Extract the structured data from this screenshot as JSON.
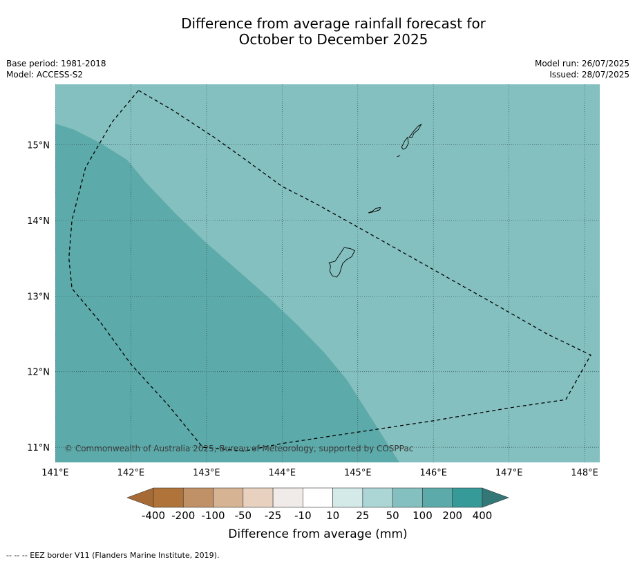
{
  "title": {
    "line1": "Difference from average rainfall forecast for",
    "line2": "October to December 2025"
  },
  "meta": {
    "base_period": "Base period: 1981-2018",
    "model": "Model: ACCESS-S2",
    "model_run": "Model run: 26/07/2025",
    "issued": "Issued: 28/07/2025"
  },
  "map": {
    "lon_range": [
      141.0,
      148.2
    ],
    "lat_range": [
      10.8,
      15.8
    ],
    "lon_ticks": [
      {
        "value": 141,
        "label": "141°E"
      },
      {
        "value": 142,
        "label": "142°E"
      },
      {
        "value": 143,
        "label": "143°E"
      },
      {
        "value": 144,
        "label": "144°E"
      },
      {
        "value": 145,
        "label": "145°E"
      },
      {
        "value": 146,
        "label": "146°E"
      },
      {
        "value": 147,
        "label": "147°E"
      },
      {
        "value": 148,
        "label": "148°E"
      }
    ],
    "lat_ticks": [
      {
        "value": 15,
        "label": "15°N"
      },
      {
        "value": 14,
        "label": "14°N"
      },
      {
        "value": 13,
        "label": "13°N"
      },
      {
        "value": 12,
        "label": "12°N"
      },
      {
        "value": 11,
        "label": "11°N"
      }
    ],
    "grid": true,
    "background_color": "#84c0bf",
    "region_color": "#5daaaa",
    "wetter_region": [
      [
        141.0,
        15.28
      ],
      [
        141.25,
        15.2
      ],
      [
        141.6,
        15.02
      ],
      [
        141.95,
        14.8
      ],
      [
        142.2,
        14.5
      ],
      [
        142.6,
        14.08
      ],
      [
        143.0,
        13.7
      ],
      [
        143.4,
        13.35
      ],
      [
        143.8,
        13.0
      ],
      [
        144.2,
        12.62
      ],
      [
        144.55,
        12.26
      ],
      [
        144.85,
        11.9
      ],
      [
        145.2,
        11.35
      ],
      [
        145.55,
        10.8
      ],
      [
        141.0,
        10.8
      ]
    ],
    "eez_border": [
      [
        142.1,
        15.72
      ],
      [
        142.55,
        15.46
      ],
      [
        143.1,
        15.1
      ],
      [
        143.45,
        14.85
      ],
      [
        144.0,
        14.45
      ],
      [
        144.45,
        14.22
      ],
      [
        145.2,
        13.8
      ],
      [
        146.0,
        13.35
      ],
      [
        146.8,
        12.9
      ],
      [
        147.5,
        12.5
      ],
      [
        148.08,
        12.22
      ],
      [
        147.75,
        11.63
      ],
      [
        147.0,
        11.52
      ],
      [
        146.0,
        11.35
      ],
      [
        145.0,
        11.2
      ],
      [
        144.0,
        11.05
      ],
      [
        143.5,
        10.95
      ],
      [
        142.95,
        11.0
      ],
      [
        142.5,
        11.55
      ],
      [
        142.0,
        12.1
      ],
      [
        141.6,
        12.65
      ],
      [
        141.22,
        13.1
      ],
      [
        141.18,
        13.5
      ],
      [
        141.22,
        14.0
      ],
      [
        141.4,
        14.7
      ],
      [
        141.75,
        15.3
      ],
      [
        142.1,
        15.72
      ]
    ],
    "islands": [
      [
        [
          144.62,
          13.44
        ],
        [
          144.7,
          13.46
        ],
        [
          144.78,
          13.58
        ],
        [
          144.82,
          13.64
        ],
        [
          144.9,
          13.63
        ],
        [
          144.96,
          13.6
        ],
        [
          144.92,
          13.52
        ],
        [
          144.85,
          13.48
        ],
        [
          144.8,
          13.43
        ],
        [
          144.76,
          13.3
        ],
        [
          144.72,
          13.25
        ],
        [
          144.66,
          13.27
        ],
        [
          144.63,
          13.33
        ],
        [
          144.64,
          13.4
        ],
        [
          144.62,
          13.44
        ]
      ],
      [
        [
          145.14,
          14.1
        ],
        [
          145.19,
          14.12
        ],
        [
          145.24,
          14.16
        ],
        [
          145.3,
          14.17
        ],
        [
          145.29,
          14.14
        ],
        [
          145.23,
          14.12
        ],
        [
          145.19,
          14.11
        ],
        [
          145.14,
          14.1
        ]
      ],
      [
        [
          145.58,
          14.97
        ],
        [
          145.62,
          15.05
        ],
        [
          145.66,
          15.1
        ],
        [
          145.67,
          15.02
        ],
        [
          145.64,
          14.96
        ],
        [
          145.6,
          14.94
        ],
        [
          145.58,
          14.97
        ]
      ],
      [
        [
          145.68,
          15.1
        ],
        [
          145.74,
          15.18
        ],
        [
          145.8,
          15.25
        ],
        [
          145.84,
          15.27
        ],
        [
          145.8,
          15.2
        ],
        [
          145.74,
          15.15
        ],
        [
          145.72,
          15.1
        ],
        [
          145.68,
          15.1
        ]
      ],
      [
        [
          145.52,
          14.84
        ],
        [
          145.56,
          14.86
        ]
      ]
    ]
  },
  "copyright": "© Commonwealth of Australia 2025, Bureau of Meteorology, supported by COSPPac",
  "colorbar": {
    "colors": [
      "#a86a35",
      "#b0743a",
      "#c09066",
      "#d5b393",
      "#e8d1bf",
      "#f0ebe8",
      "#ffffff",
      "#d3eae9",
      "#acd5d5",
      "#84c0bf",
      "#5daaaa",
      "#359a98",
      "#337776"
    ],
    "labels": [
      "-400",
      "-200",
      "-100",
      "-50",
      "-25",
      "-10",
      "10",
      "25",
      "50",
      "100",
      "200",
      "400"
    ],
    "title": "Difference from average (mm)"
  },
  "footer": "--  --  -- EEZ border V11 (Flanders Marine Institute, 2019)."
}
